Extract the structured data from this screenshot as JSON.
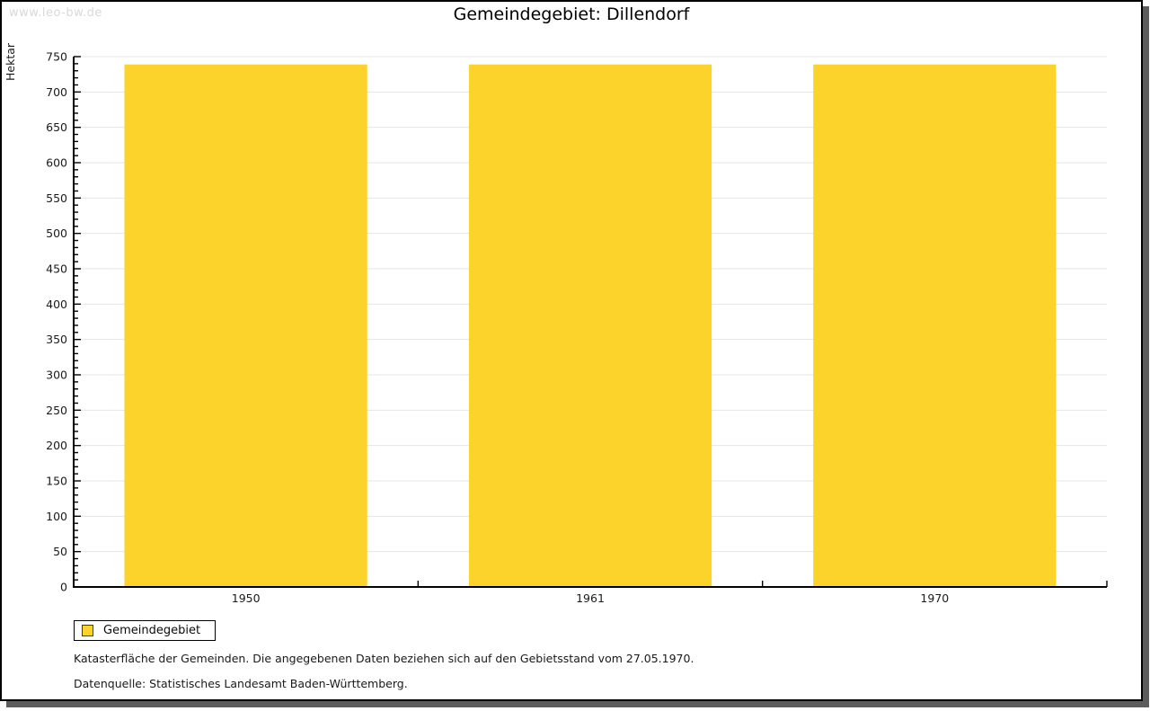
{
  "watermark": "www.leo-bw.de",
  "title": "Gemeindegebiet: Dillendorf",
  "legend": {
    "items": [
      {
        "label": "Gemeindegebiet",
        "color": "#fcd32b"
      }
    ]
  },
  "footnotes": [
    "Katasterfläche der Gemeinden. Die angegebenen Daten beziehen sich auf den Gebietsstand vom 27.05.1970.",
    "Datenquelle: Statistisches Landesamt Baden-Württemberg."
  ],
  "chart_data": {
    "type": "bar",
    "title": "Gemeindegebiet: Dillendorf",
    "categories": [
      "1950",
      "1961",
      "1970"
    ],
    "series": [
      {
        "name": "Gemeindegebiet",
        "values": [
          739,
          739,
          739
        ],
        "color": "#fcd32b"
      }
    ],
    "xlabel": "",
    "ylabel": "Hektar",
    "ylim": [
      0,
      750
    ],
    "ytick_major": 50,
    "ytick_minor": 10,
    "grid": "horizontal-major",
    "legend_position": "bottom-left"
  },
  "colors": {
    "bar": "#fcd32b",
    "grid": "#e4e4e4",
    "axis": "#000000",
    "text": "#1a1a1a",
    "watermark": "#d9d9d9",
    "shadow": "#5c5c5c"
  }
}
